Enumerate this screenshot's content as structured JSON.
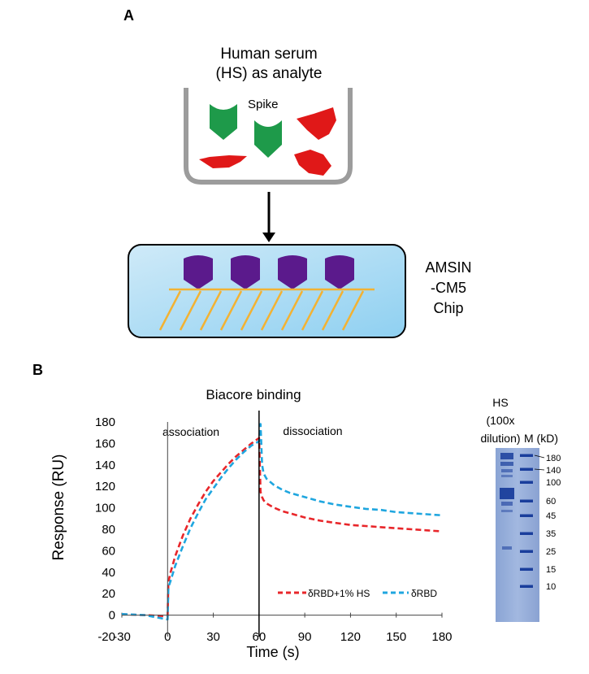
{
  "panel_a": {
    "label": "A",
    "analyte_line1": "Human serum",
    "analyte_line2": "(HS) as analyte",
    "spike_label": "Spike",
    "chip_line1": "AMSIN",
    "chip_line2": "-CM5",
    "chip_line3": "Chip",
    "colors": {
      "spike": "#1e9a4a",
      "serum_protein": "#e01818",
      "ligand": "#5b1a8c",
      "chip_fill": "#a9d9f3",
      "linker": "#f2b233"
    }
  },
  "panel_b": {
    "label": "B",
    "gel": {
      "hs_line1": "HS",
      "hs_line2": "(100x",
      "hs_line3": "dilution)",
      "marker_header": "M (kD)",
      "markers": [
        "180",
        "140",
        "100",
        "60",
        "45",
        "35",
        "25",
        "15",
        "10"
      ]
    }
  },
  "chart_data": {
    "type": "line",
    "title": "Biacore binding",
    "xlabel": "Time (s)",
    "ylabel": "Response (RU)",
    "xlim": [
      -30,
      180
    ],
    "ylim": [
      -20,
      180
    ],
    "xticks": [
      -30,
      0,
      30,
      60,
      90,
      120,
      150,
      180
    ],
    "yticks": [
      -20,
      0,
      20,
      40,
      60,
      80,
      100,
      120,
      140,
      160,
      180
    ],
    "annotations": [
      "association",
      "dissociation"
    ],
    "injection_end_x": 60,
    "legend_position": "lower-right",
    "series": [
      {
        "name": "δRBD+1% HS",
        "color": "#e8262a",
        "x": [
          -30,
          -15,
          0,
          0.5,
          1,
          2,
          5,
          10,
          15,
          20,
          25,
          30,
          35,
          40,
          45,
          50,
          55,
          60,
          61,
          62,
          63,
          65,
          70,
          75,
          80,
          90,
          100,
          110,
          120,
          130,
          140,
          150,
          160,
          170,
          180
        ],
        "y": [
          1,
          0,
          -1,
          28,
          34,
          40,
          55,
          74,
          90,
          103,
          115,
          125,
          133,
          141,
          148,
          154,
          160,
          165,
          115,
          110,
          107,
          104,
          100,
          97,
          95,
          91,
          88,
          86,
          84,
          83,
          82,
          81,
          80,
          79,
          78
        ]
      },
      {
        "name": "δRBD",
        "color": "#1fa6df",
        "x": [
          -30,
          -15,
          0,
          0.5,
          1,
          2,
          5,
          10,
          15,
          20,
          25,
          30,
          35,
          40,
          45,
          50,
          55,
          60,
          61,
          62,
          63,
          65,
          70,
          75,
          80,
          90,
          100,
          110,
          120,
          130,
          140,
          150,
          160,
          170,
          180
        ],
        "y": [
          1,
          0,
          -4,
          24,
          28,
          32,
          46,
          64,
          81,
          95,
          108,
          118,
          128,
          137,
          145,
          152,
          158,
          162,
          178,
          140,
          132,
          127,
          121,
          117,
          114,
          110,
          106,
          103,
          101,
          99,
          98,
          96,
          95,
          94,
          93
        ]
      }
    ]
  }
}
